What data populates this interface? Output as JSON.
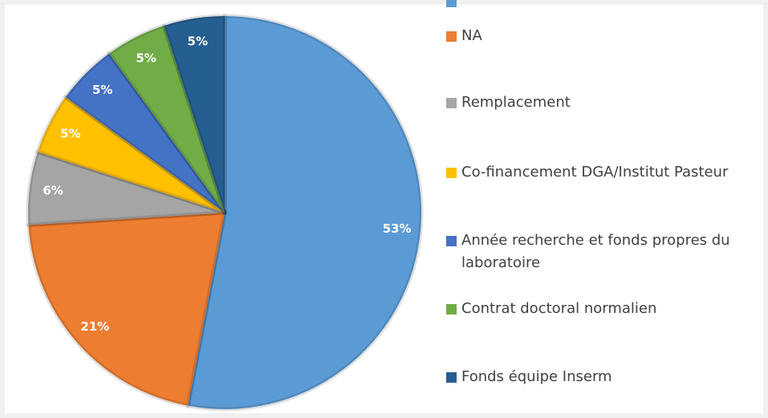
{
  "chart_data": {
    "type": "pie",
    "categories": [
      null,
      "NA",
      "Remplacement",
      "Co-financement DGA/Institut Pasteur",
      "Année recherche et fonds propres du laboratoire",
      "Contrat doctoral normalien",
      "Fonds équipe Inserm"
    ],
    "values": [
      53,
      21,
      6,
      5,
      5,
      5,
      5
    ],
    "value_labels": [
      "53%",
      "21%",
      "6%",
      "5%",
      "5%",
      "5%",
      "5%"
    ],
    "colors": [
      "#5b9bd5",
      "#ed7d31",
      "#a5a5a5",
      "#ffc000",
      "#4472c4",
      "#70ad47",
      "#255e91"
    ]
  }
}
